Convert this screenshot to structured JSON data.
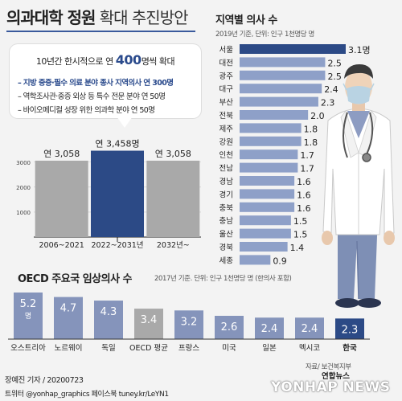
{
  "title": {
    "bold": "의과대학 정원",
    "light": " 확대 추진방안"
  },
  "callout": {
    "prefix": "10년간 한시적으로 연 ",
    "number": "400",
    "suffix": "명씩 확대",
    "items": [
      "– 지방 중증·필수 의료 분야 종사 지역의사 연 300명",
      "– 역학조사관·중증 외상 등 특수 전문 분야 연 50명",
      "– 바이오메디컬 성장 위한 의과학 분야 연 50명"
    ]
  },
  "regional": {
    "title": "지역별 의사 수",
    "note": "2019년 기준, 단위: 인구 1천명당 명"
  },
  "oecd": {
    "title": "OECD 주요국 임상의사 수",
    "note": "2017년 기준. 단위: 인구 1천명당 명 (한의사 포함)"
  },
  "credits": {
    "source": "자료/ 보건복지부",
    "author": "장예진 기자 / 20200723",
    "social": "트위터 @yonhap_graphics  페이스북 tuney.kr/LeYN1",
    "agency": "연합뉴스",
    "watermark": "YONHAP NEWS"
  },
  "colors": {
    "navy": "#2c4a86",
    "steel": "#8ea0c8",
    "gray": "#a9a9a9",
    "lightbar": "#8594bb"
  },
  "chart_data": [
    {
      "type": "bar",
      "title": "",
      "categories": [
        "2006~2021",
        "2022~2031년",
        "2032년~"
      ],
      "values": [
        3058,
        3458,
        3058
      ],
      "value_labels": [
        "연 3,058",
        "연 3,458명",
        "연 3,058"
      ],
      "y_ticks": [
        0,
        1000,
        2000,
        3000
      ],
      "ylim": [
        0,
        3700
      ],
      "highlight": [
        false,
        true,
        false
      ]
    },
    {
      "type": "bar",
      "orientation": "horizontal",
      "title": "지역별 의사 수",
      "categories": [
        "서울",
        "대전",
        "광주",
        "대구",
        "부산",
        "전북",
        "제주",
        "강원",
        "인천",
        "전남",
        "경남",
        "경기",
        "충북",
        "충남",
        "울산",
        "경북",
        "세종"
      ],
      "values": [
        3.1,
        2.5,
        2.5,
        2.4,
        2.3,
        2.0,
        1.8,
        1.8,
        1.7,
        1.7,
        1.6,
        1.6,
        1.6,
        1.5,
        1.5,
        1.4,
        0.9
      ],
      "value_labels": [
        "3.1명",
        "2.5",
        "2.5",
        "2.4",
        "2.3",
        "2.0",
        "1.8",
        "1.8",
        "1.7",
        "1.7",
        "1.6",
        "1.6",
        "1.6",
        "1.5",
        "1.5",
        "1.4",
        "0.9"
      ],
      "xlim": [
        0,
        3.1
      ]
    },
    {
      "type": "bar",
      "title": "OECD 주요국 임상의사 수",
      "categories": [
        "오스트리아",
        "노르웨이",
        "독일",
        "OECD 평균",
        "프랑스",
        "미국",
        "일본",
        "멕시코",
        "한국"
      ],
      "values": [
        5.2,
        4.7,
        4.3,
        3.4,
        3.2,
        2.6,
        2.4,
        2.4,
        2.3
      ],
      "value_labels": [
        "5.2",
        "4.7",
        "4.3",
        "3.4",
        "3.2",
        "2.6",
        "2.4",
        "2.4",
        "2.3"
      ],
      "unit_label": "명",
      "ylim": [
        0,
        5.2
      ],
      "bar_kinds": [
        "light",
        "light",
        "light",
        "avg",
        "light",
        "light",
        "light",
        "light",
        "korea"
      ]
    }
  ]
}
